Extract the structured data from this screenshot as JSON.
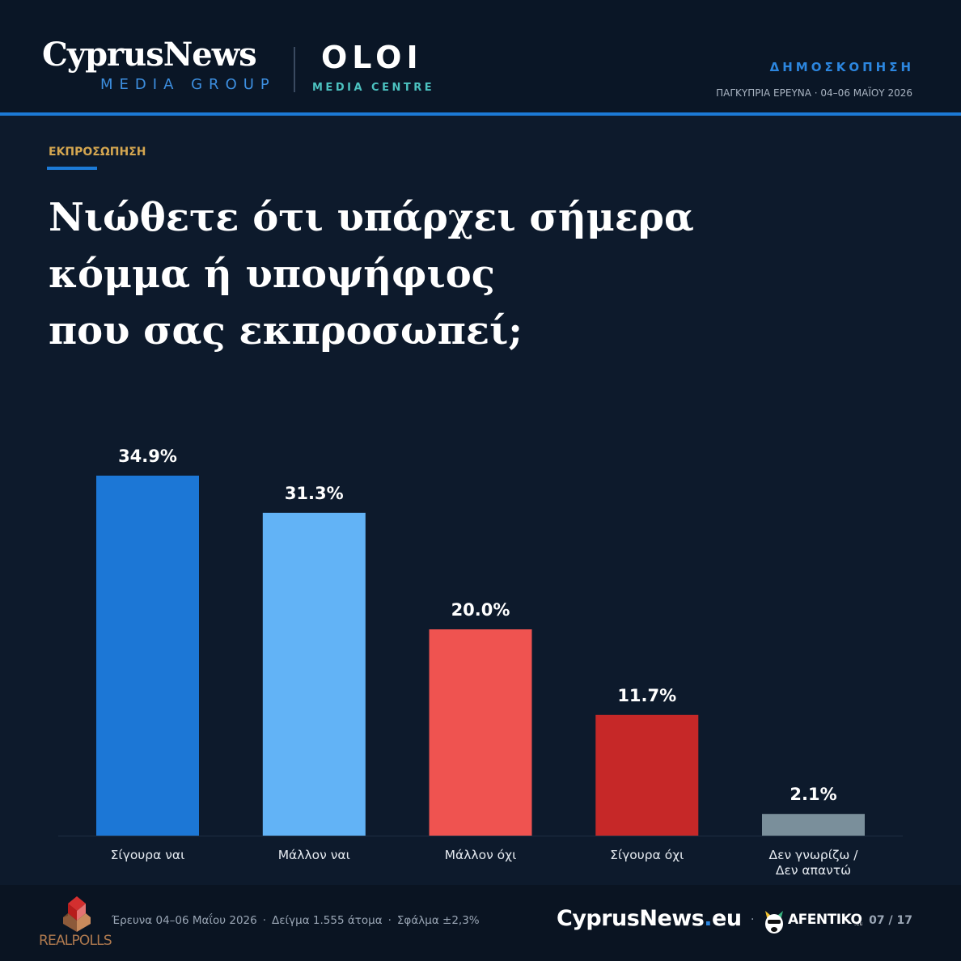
{
  "header": {
    "brand_main": "CyprusNews",
    "brand_sub": "MEDIA GROUP",
    "partner_main": "OLOI",
    "partner_sub": "MEDIA CENTRE",
    "kicker": "ΔΗΜΟΣΚΟΠΗΣΗ",
    "survey_meta": "ΠΑΓΚΥΠΡΙΑ ΕΡΕΥΝΑ · 04–06 ΜΑΪΟΥ 2026",
    "accent_color": "#1c7ad6"
  },
  "section": {
    "label": "ΕΚΠΡΟΣΩΠΗΣΗ"
  },
  "question": {
    "lines": [
      "Νιώθετε ότι υπάρχει σήμερα",
      "κόμμα ή υποψήφιος",
      "που σας εκπροσωπεί;"
    ]
  },
  "chart_data": {
    "type": "bar",
    "categories": [
      [
        "Σίγουρα ναι"
      ],
      [
        "Μάλλον ναι"
      ],
      [
        "Μάλλον όχι"
      ],
      [
        "Σίγουρα όχι"
      ],
      [
        "Δεν γνωρίζω /",
        "Δεν απαντώ"
      ]
    ],
    "values": [
      34.9,
      31.3,
      20.0,
      11.7,
      2.1
    ],
    "value_labels": [
      "34.9%",
      "31.3%",
      "20.0%",
      "11.7%",
      "2.1%"
    ],
    "colors": [
      "#1c77d6",
      "#62b3f6",
      "#ef5350",
      "#c62828",
      "#7a8f9b"
    ],
    "ylim": [
      0,
      34.9
    ],
    "grid": false
  },
  "footer": {
    "pollster_logo": "REALPOLLS",
    "meta_items": [
      "Έρευνα 04–06 Μαΐου 2026",
      "Δείγμα 1.555 άτομα",
      "Σφάλμα ±2,3%"
    ],
    "meta_separator": "·",
    "site_name": "CyprusNews",
    "site_dot": ".",
    "site_tld": "eu",
    "brand_sep": "·",
    "partner_logo": "AFENTIKO",
    "page": "07 / 17"
  }
}
